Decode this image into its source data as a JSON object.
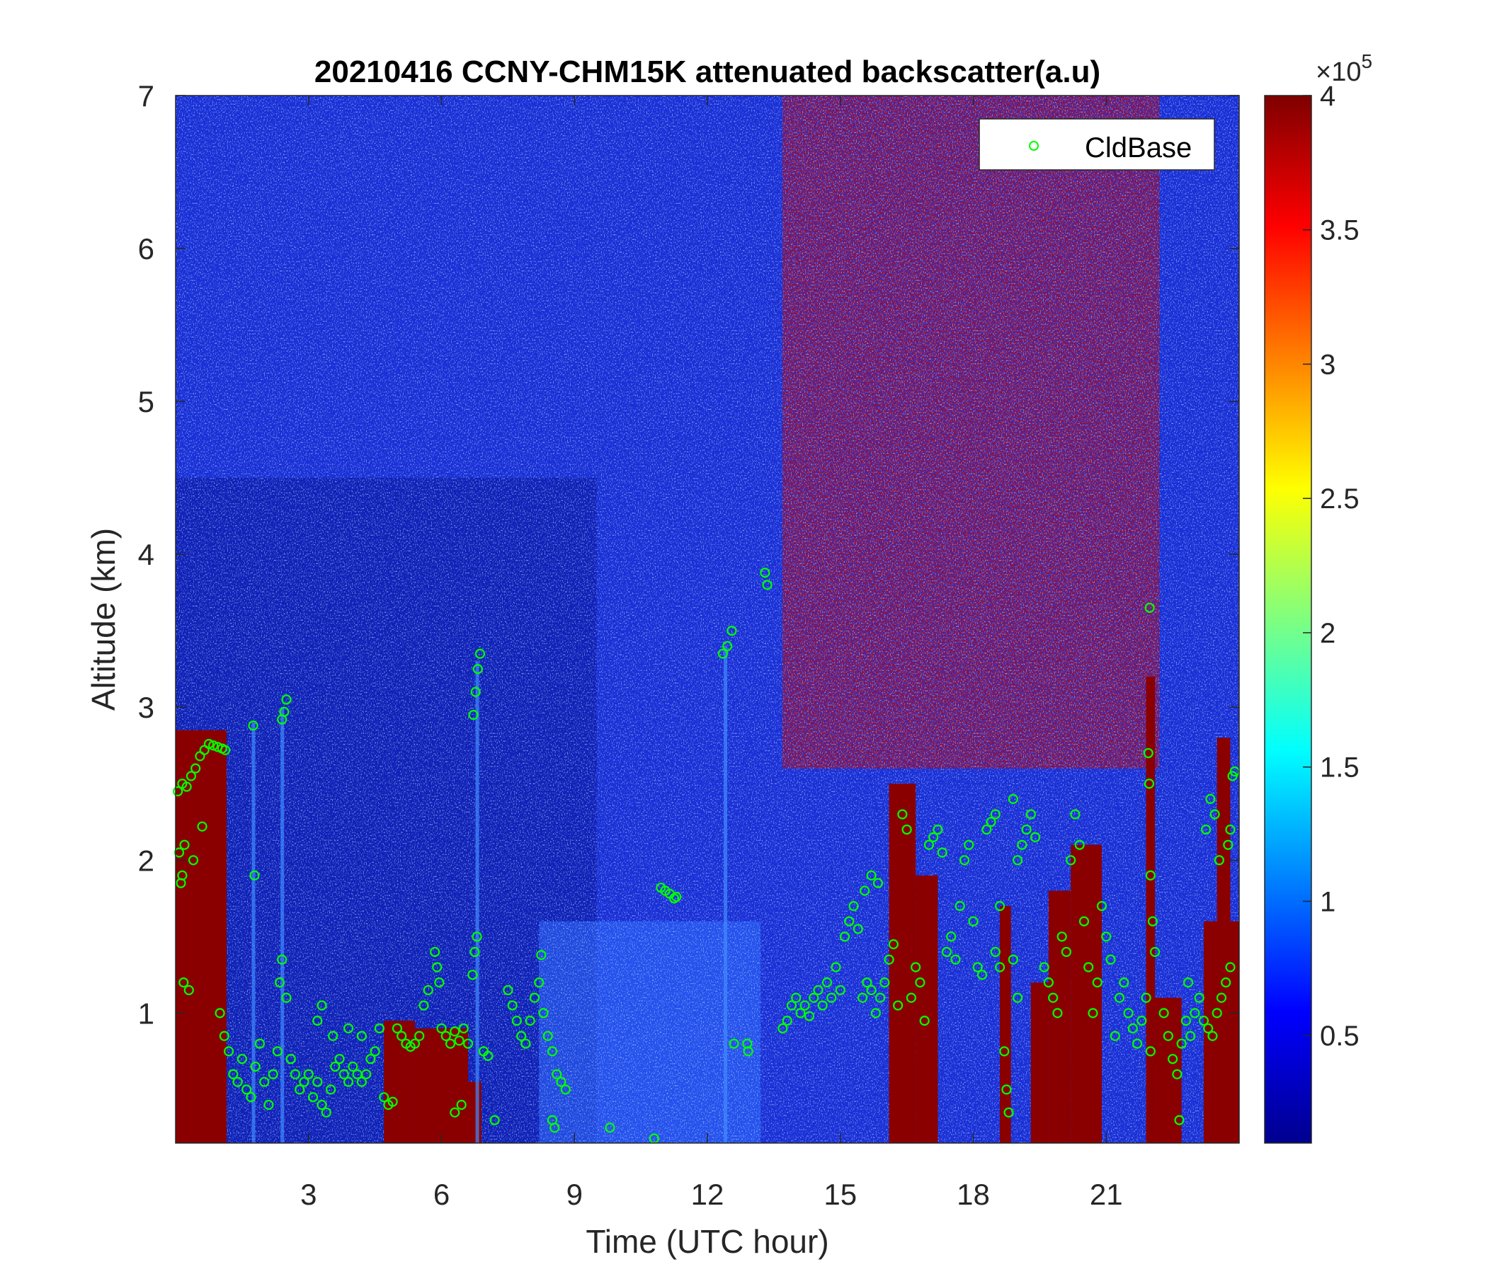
{
  "chart_data": {
    "type": "heatmap",
    "title": "20210416 CCNY-CHM15K attenuated backscatter(a.u)",
    "xlabel": "Time (UTC hour)",
    "ylabel": "Altitude (km)",
    "xlim": [
      0,
      24
    ],
    "ylim": [
      0.15,
      7
    ],
    "x_ticks": [
      3,
      6,
      9,
      12,
      15,
      18,
      21
    ],
    "x_tick_labels": [
      "3",
      "6",
      "9",
      "12",
      "15",
      "18",
      "21"
    ],
    "y_ticks": [
      1,
      2,
      3,
      4,
      5,
      6,
      7
    ],
    "y_tick_labels": [
      "1",
      "2",
      "3",
      "4",
      "5",
      "6",
      "7"
    ],
    "colormap": "jet",
    "colorbar": {
      "range": [
        0.1,
        4
      ],
      "ticks": [
        0.5,
        1,
        1.5,
        2,
        2.5,
        3,
        3.5,
        4
      ],
      "tick_labels": [
        "0.5",
        "1",
        "1.5",
        "2",
        "2.5",
        "3",
        "3.5",
        "4"
      ],
      "exponent_label": "×10",
      "exponent_power": "5"
    },
    "legend": {
      "position": "top-right",
      "entries": [
        {
          "name": "CldBase",
          "marker": "circle",
          "color": "#00ff00"
        }
      ]
    },
    "series": [
      {
        "name": "CldBase",
        "marker": "circle",
        "color": "#00ff00",
        "points": [
          [
            0.05,
            2.45
          ],
          [
            0.15,
            2.5
          ],
          [
            0.25,
            2.48
          ],
          [
            0.35,
            2.55
          ],
          [
            0.45,
            2.6
          ],
          [
            0.55,
            2.68
          ],
          [
            0.65,
            2.72
          ],
          [
            0.75,
            2.76
          ],
          [
            0.85,
            2.75
          ],
          [
            0.95,
            2.74
          ],
          [
            1.05,
            2.73
          ],
          [
            1.12,
            2.72
          ],
          [
            0.08,
            2.05
          ],
          [
            0.12,
            1.85
          ],
          [
            0.15,
            1.9
          ],
          [
            0.2,
            2.1
          ],
          [
            0.4,
            2.0
          ],
          [
            0.6,
            2.22
          ],
          [
            0.18,
            1.2
          ],
          [
            0.3,
            1.15
          ],
          [
            1.0,
            1.0
          ],
          [
            1.1,
            0.85
          ],
          [
            1.2,
            0.75
          ],
          [
            1.3,
            0.6
          ],
          [
            1.4,
            0.55
          ],
          [
            1.5,
            0.7
          ],
          [
            1.6,
            0.5
          ],
          [
            1.7,
            0.45
          ],
          [
            1.8,
            0.65
          ],
          [
            1.9,
            0.8
          ],
          [
            2.0,
            0.55
          ],
          [
            2.1,
            0.4
          ],
          [
            2.2,
            0.6
          ],
          [
            2.3,
            0.75
          ],
          [
            1.75,
            2.88
          ],
          [
            1.78,
            1.9
          ],
          [
            2.4,
            2.92
          ],
          [
            2.45,
            2.97
          ],
          [
            2.5,
            3.05
          ],
          [
            2.35,
            1.2
          ],
          [
            2.4,
            1.35
          ],
          [
            2.5,
            1.1
          ],
          [
            2.6,
            0.7
          ],
          [
            2.7,
            0.6
          ],
          [
            2.8,
            0.5
          ],
          [
            2.9,
            0.55
          ],
          [
            3.0,
            0.6
          ],
          [
            3.1,
            0.45
          ],
          [
            3.2,
            0.55
          ],
          [
            3.3,
            0.4
          ],
          [
            3.4,
            0.35
          ],
          [
            3.5,
            0.5
          ],
          [
            3.6,
            0.65
          ],
          [
            3.7,
            0.7
          ],
          [
            3.8,
            0.6
          ],
          [
            3.9,
            0.55
          ],
          [
            4.0,
            0.65
          ],
          [
            4.1,
            0.6
          ],
          [
            4.2,
            0.55
          ],
          [
            4.3,
            0.6
          ],
          [
            4.4,
            0.7
          ],
          [
            4.5,
            0.75
          ],
          [
            3.2,
            0.95
          ],
          [
            3.3,
            1.05
          ],
          [
            3.55,
            0.85
          ],
          [
            3.9,
            0.9
          ],
          [
            4.2,
            0.85
          ],
          [
            4.6,
            0.9
          ],
          [
            4.7,
            0.45
          ],
          [
            4.8,
            0.4
          ],
          [
            4.9,
            0.42
          ],
          [
            5.0,
            0.9
          ],
          [
            5.1,
            0.85
          ],
          [
            5.2,
            0.8
          ],
          [
            5.3,
            0.78
          ],
          [
            5.4,
            0.8
          ],
          [
            5.5,
            0.85
          ],
          [
            5.6,
            1.05
          ],
          [
            5.7,
            1.15
          ],
          [
            5.85,
            1.4
          ],
          [
            5.9,
            1.3
          ],
          [
            5.95,
            1.2
          ],
          [
            6.0,
            0.9
          ],
          [
            6.1,
            0.85
          ],
          [
            6.2,
            0.8
          ],
          [
            6.3,
            0.88
          ],
          [
            6.4,
            0.82
          ],
          [
            6.5,
            0.9
          ],
          [
            6.6,
            0.8
          ],
          [
            6.72,
            2.95
          ],
          [
            6.77,
            3.1
          ],
          [
            6.82,
            3.25
          ],
          [
            6.87,
            3.35
          ],
          [
            6.8,
            1.5
          ],
          [
            6.75,
            1.4
          ],
          [
            6.7,
            1.25
          ],
          [
            6.3,
            0.35
          ],
          [
            6.45,
            0.4
          ],
          [
            6.95,
            0.75
          ],
          [
            7.05,
            0.72
          ],
          [
            7.2,
            0.3
          ],
          [
            7.5,
            1.15
          ],
          [
            7.6,
            1.05
          ],
          [
            7.7,
            0.95
          ],
          [
            7.8,
            0.85
          ],
          [
            7.9,
            0.8
          ],
          [
            8.0,
            0.95
          ],
          [
            8.1,
            1.1
          ],
          [
            8.2,
            1.2
          ],
          [
            8.25,
            1.38
          ],
          [
            8.3,
            1.0
          ],
          [
            8.4,
            0.85
          ],
          [
            8.5,
            0.75
          ],
          [
            8.6,
            0.6
          ],
          [
            8.7,
            0.55
          ],
          [
            8.8,
            0.5
          ],
          [
            8.5,
            0.3
          ],
          [
            8.55,
            0.25
          ],
          [
            9.8,
            0.25
          ],
          [
            10.8,
            0.18
          ],
          [
            10.95,
            1.82
          ],
          [
            11.05,
            1.8
          ],
          [
            11.15,
            1.78
          ],
          [
            11.25,
            1.75
          ],
          [
            11.3,
            1.76
          ],
          [
            12.35,
            3.35
          ],
          [
            12.45,
            3.4
          ],
          [
            12.55,
            3.5
          ],
          [
            12.6,
            0.8
          ],
          [
            12.9,
            0.8
          ],
          [
            12.92,
            0.75
          ],
          [
            13.3,
            3.88
          ],
          [
            13.35,
            3.8
          ],
          [
            13.7,
            0.9
          ],
          [
            13.8,
            0.95
          ],
          [
            13.9,
            1.05
          ],
          [
            14.0,
            1.1
          ],
          [
            14.1,
            1.0
          ],
          [
            14.2,
            1.05
          ],
          [
            14.3,
            0.98
          ],
          [
            14.4,
            1.1
          ],
          [
            14.5,
            1.15
          ],
          [
            14.6,
            1.05
          ],
          [
            14.7,
            1.2
          ],
          [
            14.8,
            1.1
          ],
          [
            14.9,
            1.3
          ],
          [
            15.0,
            1.15
          ],
          [
            15.1,
            1.5
          ],
          [
            15.2,
            1.6
          ],
          [
            15.3,
            1.7
          ],
          [
            15.4,
            1.55
          ],
          [
            15.5,
            1.1
          ],
          [
            15.6,
            1.2
          ],
          [
            15.7,
            1.15
          ],
          [
            15.8,
            1.0
          ],
          [
            15.9,
            1.1
          ],
          [
            16.0,
            1.2
          ],
          [
            16.1,
            1.35
          ],
          [
            16.2,
            1.45
          ],
          [
            16.3,
            1.05
          ],
          [
            15.55,
            1.8
          ],
          [
            15.7,
            1.9
          ],
          [
            15.85,
            1.85
          ],
          [
            16.4,
            2.3
          ],
          [
            16.5,
            2.2
          ],
          [
            16.6,
            1.1
          ],
          [
            16.7,
            1.3
          ],
          [
            16.8,
            1.2
          ],
          [
            16.9,
            0.95
          ],
          [
            17.0,
            2.1
          ],
          [
            17.1,
            2.15
          ],
          [
            17.2,
            2.2
          ],
          [
            17.3,
            2.05
          ],
          [
            17.4,
            1.4
          ],
          [
            17.5,
            1.5
          ],
          [
            17.6,
            1.35
          ],
          [
            17.7,
            1.7
          ],
          [
            17.8,
            2.0
          ],
          [
            17.9,
            2.1
          ],
          [
            18.0,
            1.6
          ],
          [
            18.1,
            1.3
          ],
          [
            18.2,
            1.25
          ],
          [
            18.3,
            2.2
          ],
          [
            18.4,
            2.25
          ],
          [
            18.5,
            2.3
          ],
          [
            18.6,
            1.7
          ],
          [
            18.7,
            0.75
          ],
          [
            18.75,
            0.5
          ],
          [
            18.8,
            0.35
          ],
          [
            18.9,
            2.4
          ],
          [
            19.0,
            2.0
          ],
          [
            19.1,
            2.1
          ],
          [
            19.2,
            2.2
          ],
          [
            19.3,
            2.3
          ],
          [
            19.4,
            2.15
          ],
          [
            18.5,
            1.4
          ],
          [
            18.6,
            1.3
          ],
          [
            18.9,
            1.35
          ],
          [
            19.0,
            1.1
          ],
          [
            19.6,
            1.3
          ],
          [
            19.7,
            1.2
          ],
          [
            19.8,
            1.1
          ],
          [
            19.9,
            1.0
          ],
          [
            20.0,
            1.5
          ],
          [
            20.1,
            1.4
          ],
          [
            20.2,
            2.0
          ],
          [
            20.3,
            2.3
          ],
          [
            20.4,
            2.1
          ],
          [
            20.5,
            1.6
          ],
          [
            20.6,
            1.3
          ],
          [
            20.7,
            1.0
          ],
          [
            20.8,
            1.2
          ],
          [
            20.9,
            1.7
          ],
          [
            21.0,
            1.5
          ],
          [
            21.1,
            1.35
          ],
          [
            21.2,
            0.85
          ],
          [
            21.3,
            1.1
          ],
          [
            21.4,
            1.2
          ],
          [
            21.5,
            1.0
          ],
          [
            21.6,
            0.9
          ],
          [
            21.7,
            0.8
          ],
          [
            21.8,
            0.95
          ],
          [
            21.9,
            1.1
          ],
          [
            22.0,
            0.75
          ],
          [
            21.95,
            2.7
          ],
          [
            21.97,
            2.5
          ],
          [
            21.98,
            3.65
          ],
          [
            22.0,
            1.9
          ],
          [
            22.05,
            1.6
          ],
          [
            22.1,
            1.4
          ],
          [
            22.3,
            1.0
          ],
          [
            22.4,
            0.85
          ],
          [
            22.5,
            0.7
          ],
          [
            22.6,
            0.6
          ],
          [
            22.7,
            0.8
          ],
          [
            22.8,
            0.95
          ],
          [
            22.9,
            0.85
          ],
          [
            23.0,
            1.0
          ],
          [
            23.1,
            1.1
          ],
          [
            23.2,
            0.95
          ],
          [
            23.3,
            0.9
          ],
          [
            23.4,
            0.85
          ],
          [
            23.5,
            1.0
          ],
          [
            23.6,
            1.1
          ],
          [
            23.7,
            1.2
          ],
          [
            23.8,
            1.3
          ],
          [
            22.65,
            0.3
          ],
          [
            22.85,
            1.2
          ],
          [
            23.25,
            2.2
          ],
          [
            23.35,
            2.4
          ],
          [
            23.45,
            2.3
          ],
          [
            23.55,
            2.0
          ],
          [
            23.75,
            2.1
          ],
          [
            23.8,
            2.2
          ],
          [
            23.85,
            2.55
          ],
          [
            23.9,
            2.58
          ]
        ]
      }
    ]
  }
}
